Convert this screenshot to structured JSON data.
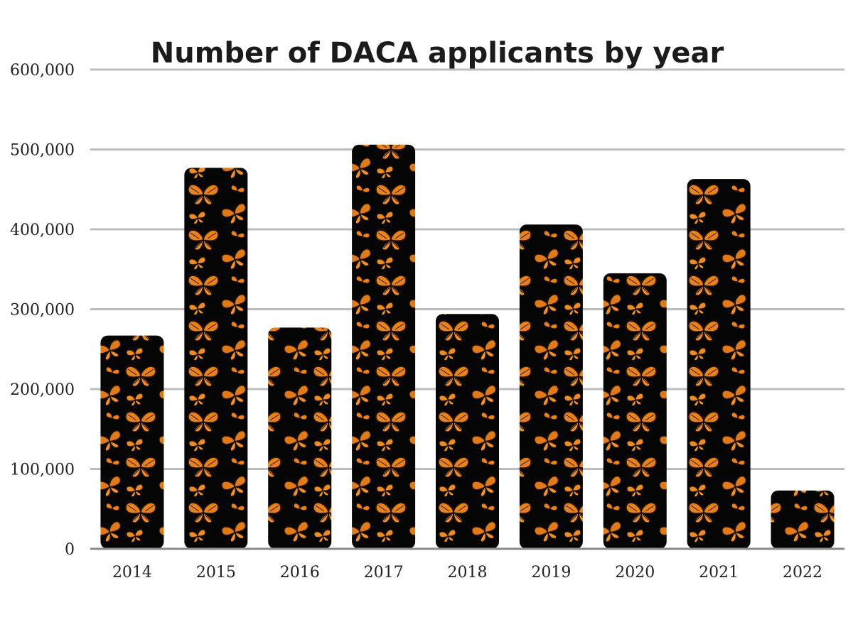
{
  "chart_data": {
    "type": "bar",
    "title": "Number of DACA applicants by year",
    "xlabel": "",
    "ylabel": "",
    "categories": [
      "2014",
      "2015",
      "2016",
      "2017",
      "2018",
      "2019",
      "2020",
      "2021",
      "2022"
    ],
    "values": [
      267000,
      477000,
      277000,
      506000,
      294000,
      406000,
      345000,
      463000,
      73000
    ],
    "ylim": [
      0,
      600000
    ],
    "y_ticks": [
      0,
      100000,
      200000,
      300000,
      400000,
      500000,
      600000
    ],
    "y_tick_labels": [
      "0",
      "100,000",
      "200,000",
      "300,000",
      "400,000",
      "500,000",
      "600,000"
    ],
    "grid": true,
    "legend": "none",
    "colors": {
      "bar_fill": "#050505",
      "butterfly_orange": "#e8821e",
      "butterfly_dark": "#2a1606",
      "grid": "#bdbdbd",
      "baseline": "#8a8a8a"
    },
    "bar_decoration": "monarch-butterfly-pattern"
  }
}
